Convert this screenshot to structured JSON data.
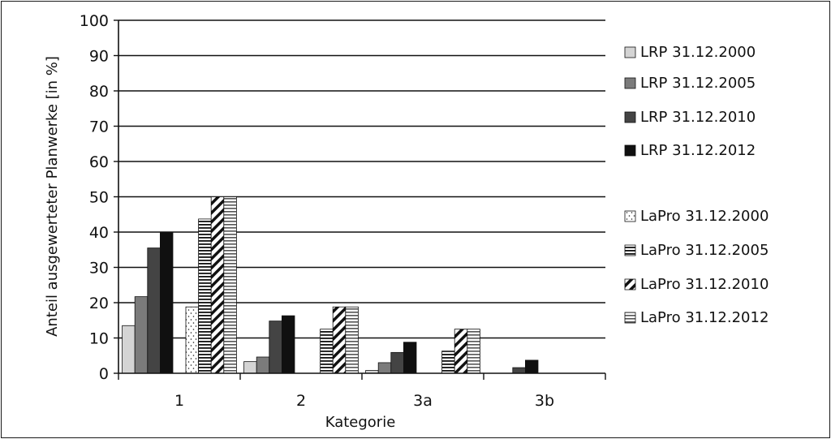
{
  "chart_data": {
    "type": "bar",
    "title": "",
    "xlabel": "Kategorie",
    "ylabel": "Anteil ausgewerteter Planwerke [in %]",
    "ylim": [
      0,
      100
    ],
    "yticks": [
      "0",
      "10",
      "20",
      "30",
      "40",
      "50",
      "60",
      "70",
      "80",
      "90",
      "100"
    ],
    "grid": true,
    "legend_position": "right",
    "categories": [
      "1",
      "2",
      "3a",
      "3b"
    ],
    "series": [
      {
        "name": "LRP 31.12.2000",
        "values": [
          13.5,
          3.3,
          0.8,
          0
        ],
        "pattern": "solid",
        "color": "#d4d4d4"
      },
      {
        "name": "LRP 31.12.2005",
        "values": [
          21.7,
          4.6,
          3.0,
          0
        ],
        "pattern": "solid",
        "color": "#7b7b7b"
      },
      {
        "name": "LRP 31.12.2010",
        "values": [
          35.5,
          14.8,
          5.9,
          1.6
        ],
        "pattern": "solid",
        "color": "#444444"
      },
      {
        "name": "LRP 31.12.2012",
        "values": [
          39.8,
          16.3,
          8.8,
          3.7
        ],
        "pattern": "solid",
        "color": "#101010"
      },
      {
        "name": "LaPro 31.12.2000",
        "values": [
          18.8,
          0,
          0,
          0
        ],
        "pattern": "dots",
        "color": "#ffffff"
      },
      {
        "name": "LaPro 31.12.2005",
        "values": [
          43.7,
          12.5,
          6.3,
          0
        ],
        "pattern": "hlines",
        "color": "#ffffff"
      },
      {
        "name": "LaPro 31.12.2010",
        "values": [
          50.0,
          18.8,
          12.5,
          0
        ],
        "pattern": "diagonal",
        "color": "#ffffff"
      },
      {
        "name": "LaPro 31.12.2012",
        "values": [
          50.0,
          18.8,
          12.5,
          0
        ],
        "pattern": "hlines-gray",
        "color": "#ffffff"
      }
    ]
  }
}
